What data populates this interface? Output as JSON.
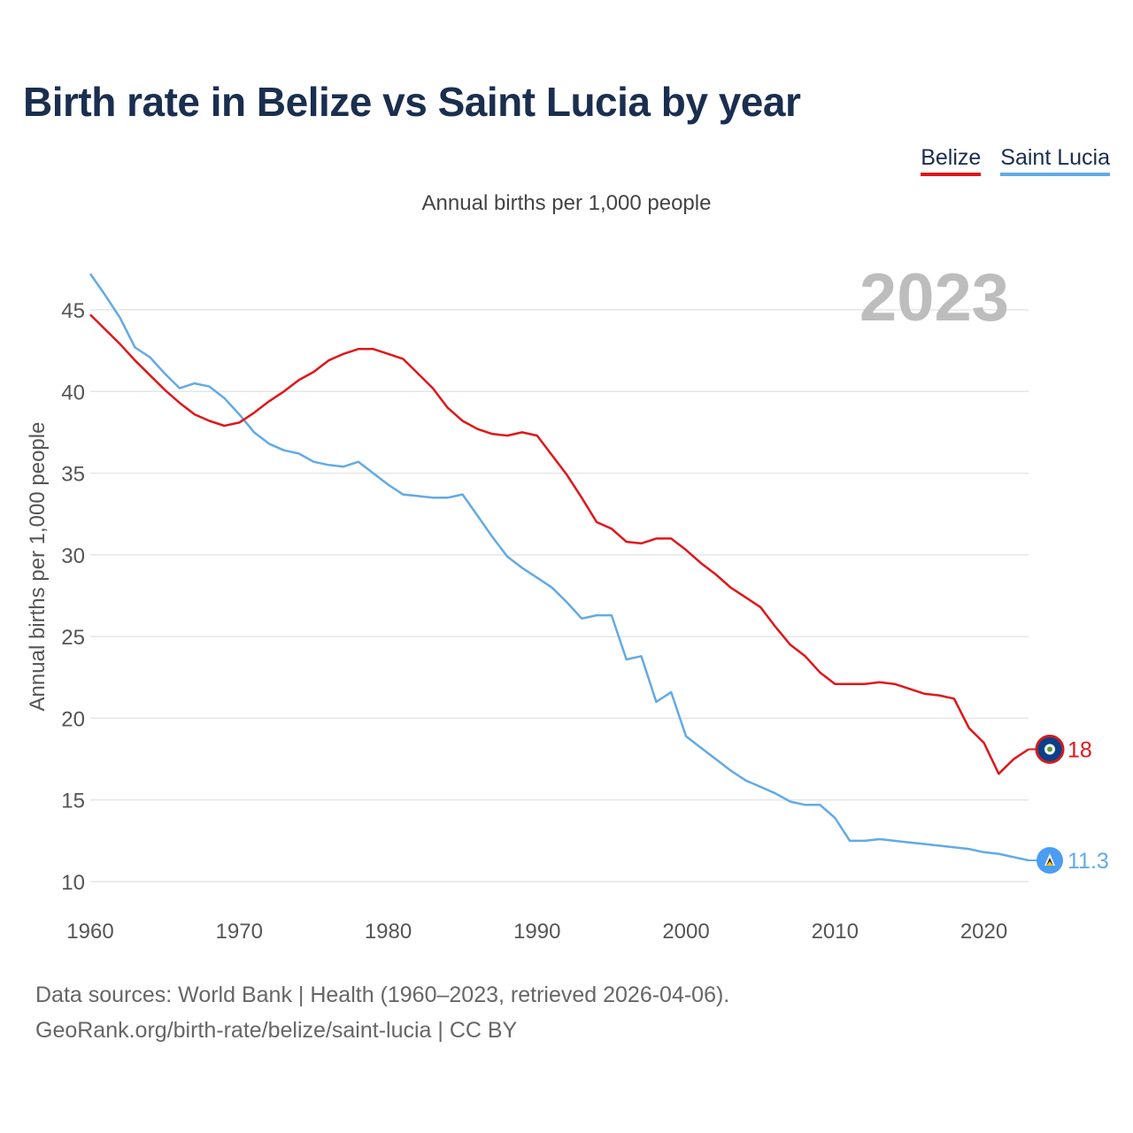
{
  "title": "Birth rate in Belize vs Saint Lucia by year",
  "subtitle": "Annual births per 1,000 people",
  "legend": [
    {
      "label": "Belize",
      "color": "#e0161a"
    },
    {
      "label": "Saint Lucia",
      "color": "#62aae6"
    }
  ],
  "footer": {
    "line1": "Data sources: World Bank | Health (1960–2023, retrieved 2026-04-06).",
    "line2": "GeoRank.org/birth-rate/belize/saint-lucia | CC BY"
  },
  "chart_data": {
    "type": "line",
    "year_label": "2023",
    "ylabel": "Annual births per 1,000 people",
    "xlim": [
      1960,
      2023
    ],
    "ylim": [
      10,
      47
    ],
    "x_ticks": [
      1960,
      1970,
      1980,
      1990,
      2000,
      2010,
      2020
    ],
    "y_ticks": [
      10,
      15,
      20,
      25,
      30,
      35,
      40,
      45
    ],
    "x": [
      1960,
      1961,
      1962,
      1963,
      1964,
      1965,
      1966,
      1967,
      1968,
      1969,
      1970,
      1971,
      1972,
      1973,
      1974,
      1975,
      1976,
      1977,
      1978,
      1979,
      1980,
      1981,
      1982,
      1983,
      1984,
      1985,
      1986,
      1987,
      1988,
      1989,
      1990,
      1991,
      1992,
      1993,
      1994,
      1995,
      1996,
      1997,
      1998,
      1999,
      2000,
      2001,
      2002,
      2003,
      2004,
      2005,
      2006,
      2007,
      2008,
      2009,
      2010,
      2011,
      2012,
      2013,
      2014,
      2015,
      2016,
      2017,
      2018,
      2019,
      2020,
      2021,
      2022,
      2023
    ],
    "series": [
      {
        "name": "Belize",
        "color": "#e0161a",
        "end_label": "18",
        "values": [
          44.7,
          43.8,
          42.9,
          41.9,
          41.0,
          40.1,
          39.3,
          38.6,
          38.2,
          37.9,
          38.1,
          38.7,
          39.4,
          40.0,
          40.7,
          41.2,
          41.9,
          42.3,
          42.6,
          42.6,
          42.3,
          42.0,
          41.1,
          40.2,
          39.0,
          38.2,
          37.7,
          37.4,
          37.3,
          37.5,
          37.3,
          36.1,
          34.9,
          33.5,
          32.0,
          31.6,
          30.8,
          30.7,
          31.0,
          31.0,
          30.3,
          29.5,
          28.8,
          28.0,
          27.4,
          26.8,
          25.6,
          24.5,
          23.8,
          22.8,
          22.1,
          22.1,
          22.1,
          22.2,
          22.1,
          21.8,
          21.5,
          21.4,
          21.2,
          19.4,
          18.5,
          16.6,
          17.5,
          18.1
        ]
      },
      {
        "name": "Saint Lucia",
        "color": "#62aae6",
        "end_label": "11.3",
        "values": [
          47.2,
          45.9,
          44.5,
          42.7,
          42.1,
          41.1,
          40.2,
          40.5,
          40.3,
          39.6,
          38.6,
          37.5,
          36.8,
          36.4,
          36.2,
          35.7,
          35.5,
          35.4,
          35.7,
          35.0,
          34.3,
          33.7,
          33.6,
          33.5,
          33.5,
          33.7,
          32.4,
          31.1,
          29.9,
          29.2,
          28.6,
          28.0,
          27.1,
          26.1,
          26.3,
          26.3,
          23.6,
          23.8,
          21.0,
          21.6,
          18.9,
          18.2,
          17.5,
          16.8,
          16.2,
          15.8,
          15.4,
          14.9,
          14.7,
          14.7,
          13.9,
          12.5,
          12.5,
          12.6,
          12.5,
          12.4,
          12.3,
          12.2,
          12.1,
          12.0,
          11.8,
          11.7,
          11.5,
          11.3
        ]
      }
    ]
  }
}
